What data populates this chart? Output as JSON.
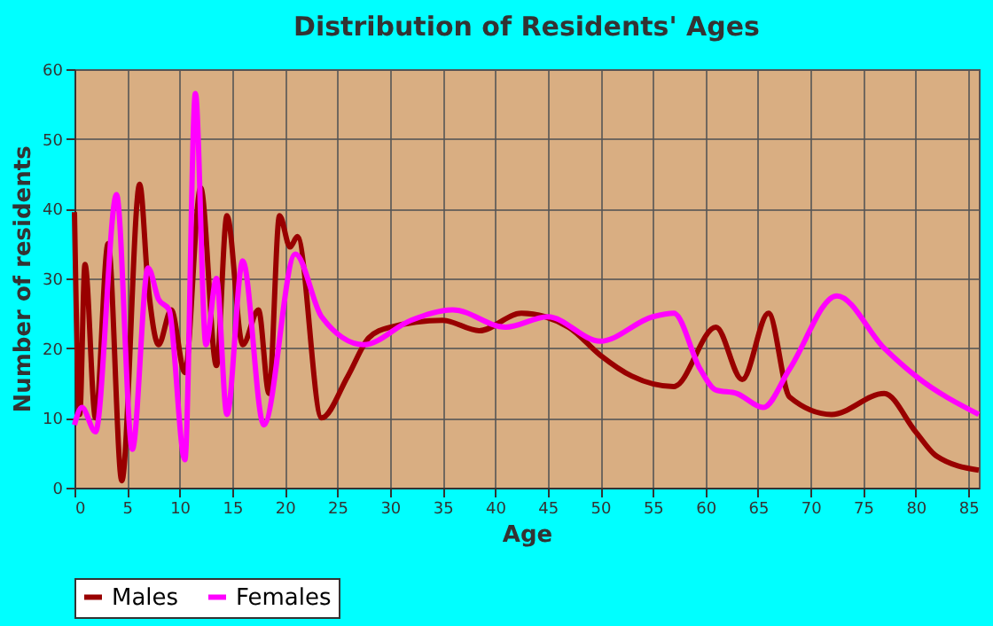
{
  "chart_data": {
    "type": "line",
    "title": "Distribution of Residents' Ages",
    "xlabel": "Age",
    "ylabel": "Number of residents",
    "xlim": [
      0,
      86
    ],
    "xticks": [
      0,
      5,
      10,
      15,
      20,
      25,
      30,
      35,
      40,
      45,
      50,
      55,
      60,
      65,
      70,
      75,
      80,
      85
    ],
    "ylim": [
      0,
      60
    ],
    "yticks": [
      0,
      10,
      20,
      30,
      40,
      50,
      60
    ],
    "grid": true,
    "legend": "bottom",
    "series": [
      {
        "name": "Males",
        "color": "#990000",
        "x": [
          0,
          0.5,
          1,
          2,
          3.2,
          4.5,
          6.2,
          7,
          8,
          9.2,
          10.5,
          12,
          13.5,
          14.5,
          16,
          17.5,
          18.5,
          19.5,
          20.5,
          21.2,
          23.5,
          26,
          28,
          30,
          35,
          38.5,
          42.5,
          47,
          50,
          53,
          57,
          61,
          63.5,
          66,
          68,
          72,
          77,
          80,
          82,
          86
        ],
        "values": [
          39.5,
          10.5,
          32,
          10,
          35,
          1,
          43.5,
          29,
          20.5,
          25.5,
          16.5,
          43,
          17.5,
          39,
          20.5,
          25.5,
          13.5,
          39,
          34.5,
          36,
          10,
          16,
          21.5,
          23,
          24,
          22.5,
          25,
          23,
          19,
          16,
          14.5,
          23,
          15.5,
          25,
          13,
          10.5,
          13.5,
          8,
          4.5,
          2.5
        ]
      },
      {
        "name": "Females",
        "color": "#ff00ff",
        "x": [
          0,
          0.7,
          2,
          4,
          5.5,
          7,
          8,
          9,
          10.5,
          11.5,
          12.5,
          13.5,
          14.5,
          16,
          18,
          21,
          23.5,
          27.5,
          32,
          36,
          41,
          45,
          50,
          55,
          57,
          59.5,
          61,
          63,
          65.5,
          68,
          72.5,
          77,
          80,
          86
        ],
        "values": [
          9,
          11.5,
          8,
          42,
          5.5,
          31.5,
          27,
          25.5,
          4,
          56.5,
          20.5,
          30,
          10.5,
          32.5,
          9,
          33.5,
          24.5,
          20.5,
          24,
          25.5,
          23,
          24.5,
          21,
          24.5,
          25,
          17,
          14,
          13.5,
          11.5,
          17,
          27.5,
          20,
          16,
          10.5
        ]
      }
    ]
  }
}
